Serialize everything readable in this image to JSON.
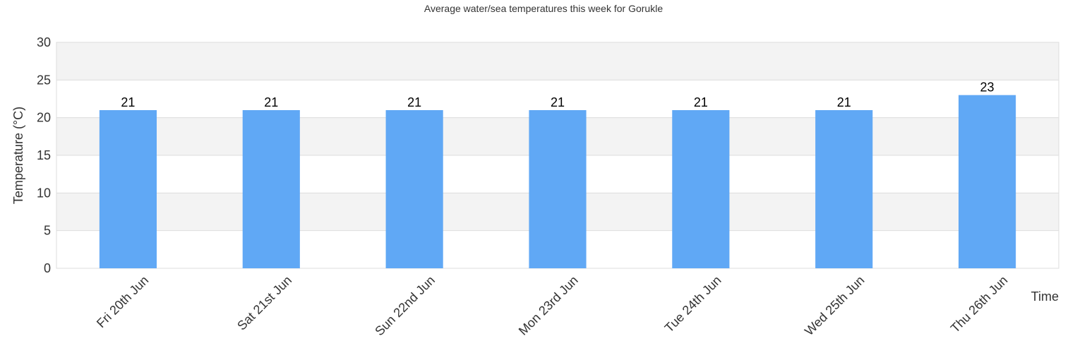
{
  "chart_data": {
    "type": "bar",
    "title": "Average water/sea temperatures this week for Gorukle",
    "xlabel": "Time",
    "ylabel": "Temperature (°C)",
    "categories": [
      "Fri 20th Jun",
      "Sat 21st Jun",
      "Sun 22nd Jun",
      "Mon 23rd Jun",
      "Tue 24th Jun",
      "Wed 25th Jun",
      "Thu 26th Jun"
    ],
    "values": [
      21,
      21,
      21,
      21,
      21,
      21,
      23
    ],
    "ylim": [
      0,
      30
    ],
    "yticks": [
      0,
      5,
      10,
      15,
      20,
      25,
      30
    ],
    "grid": true,
    "bar_color": "#60a8f5",
    "band_color": "#f3f3f3"
  }
}
